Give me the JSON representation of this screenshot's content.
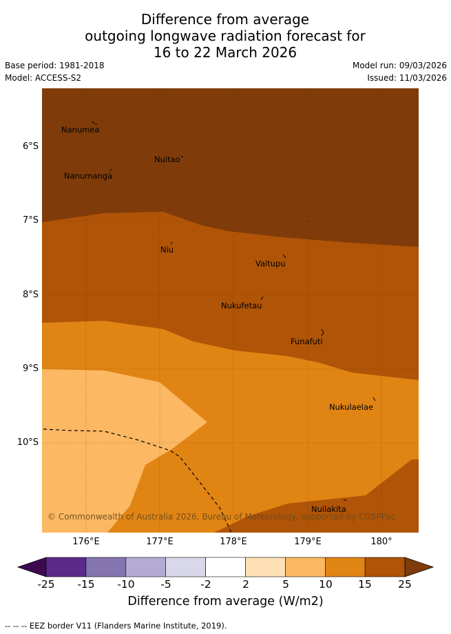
{
  "title": {
    "line1": "Difference from average",
    "line2": "outgoing longwave radiation forecast for",
    "line3": "16 to 22 March 2026"
  },
  "meta": {
    "base_period": "Base period: 1981-2018",
    "model": "Model: ACCESS-S2",
    "model_run": "Model run: 09/03/2026",
    "issued": "Issued: 11/03/2026"
  },
  "map": {
    "latitude_labels": [
      "6°S",
      "7°S",
      "8°S",
      "9°S",
      "10°S"
    ],
    "longitude_labels": [
      "176°E",
      "177°E",
      "178°E",
      "179°E",
      "180°"
    ],
    "places": [
      {
        "name": "Nanumea"
      },
      {
        "name": "Nuitao"
      },
      {
        "name": "Nanumanga"
      },
      {
        "name": "Niu"
      },
      {
        "name": "Vaitupu"
      },
      {
        "name": "Nukufetau"
      },
      {
        "name": "Funafuti"
      },
      {
        "name": "Nukulaelae"
      },
      {
        "name": "Nuilakita"
      }
    ],
    "copyright": "© Commonwealth of Australia 2026, Bureau of Meteorology, supported by COSPPac"
  },
  "colorbar": {
    "ticks": [
      "-25",
      "-15",
      "-10",
      "-5",
      "-2",
      "2",
      "5",
      "10",
      "15",
      "25"
    ],
    "colors": [
      "#3d0a52",
      "#5a2a8a",
      "#8474b0",
      "#b4abd3",
      "#d9d8eb",
      "#ffffff",
      "#fde0b4",
      "#fcb862",
      "#e08414",
      "#b05407",
      "#7f3c0a"
    ],
    "title": "Difference from average (W/m2)"
  },
  "footnote": "--  --  -- EEZ border V11 (Flanders Marine Institute, 2019)."
}
